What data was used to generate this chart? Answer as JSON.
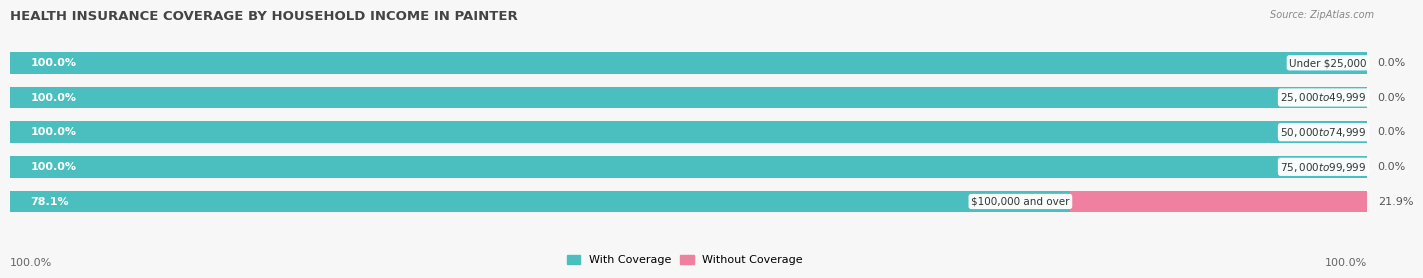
{
  "title": "HEALTH INSURANCE COVERAGE BY HOUSEHOLD INCOME IN PAINTER",
  "source": "Source: ZipAtlas.com",
  "categories": [
    "Under $25,000",
    "$25,000 to $49,999",
    "$50,000 to $74,999",
    "$75,000 to $99,999",
    "$100,000 and over"
  ],
  "with_coverage": [
    100.0,
    100.0,
    100.0,
    100.0,
    78.1
  ],
  "without_coverage": [
    0.0,
    0.0,
    0.0,
    0.0,
    21.9
  ],
  "color_with": "#4BBFBF",
  "color_without": "#F080A0",
  "color_bg_bar": "#E0E0E0",
  "color_fig_bg": "#F7F7F7",
  "title_fontsize": 9.5,
  "label_fontsize": 8,
  "tick_fontsize": 8,
  "legend_fontsize": 8,
  "bar_height": 0.62,
  "x_left_label": "100.0%",
  "x_right_label": "100.0%"
}
